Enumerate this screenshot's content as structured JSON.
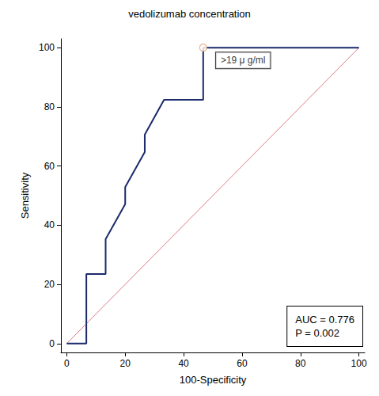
{
  "chart_data": {
    "type": "line",
    "title": "vedolizumab concentration",
    "x_label": "100-Specificity",
    "y_label": "Sensitivity",
    "series": [
      {
        "type": "line",
        "color": "#1b2a6b",
        "line_style": "solid",
        "x": [
          0,
          6.7,
          6.7,
          13.3,
          13.3,
          20,
          20,
          26.7,
          26.7,
          33.3,
          46.7,
          46.7,
          100
        ],
        "values": [
          0,
          0,
          23.5,
          23.5,
          35.3,
          47.1,
          52.9,
          64.7,
          70.6,
          82.4,
          82.4,
          100,
          100
        ]
      },
      {
        "type": "line",
        "color": "#e07a88",
        "line_style": "solid",
        "x": [
          0,
          100
        ],
        "values": [
          0,
          100
        ]
      }
    ],
    "annotations": [
      {
        "text": ">19 μ g/ml",
        "x": 46.7,
        "y": 100,
        "marker": "circle",
        "color": "#e8a070"
      },
      {
        "text": [
          "AUC = 0.776",
          "P = 0.002"
        ]
      }
    ],
    "xlim": [
      -2,
      102
    ],
    "ylim": [
      -3,
      103
    ],
    "xticks": [
      0,
      20,
      40,
      60,
      80,
      100
    ],
    "yticks": [
      0,
      20,
      40,
      60,
      80,
      100
    ],
    "grid": false
  }
}
